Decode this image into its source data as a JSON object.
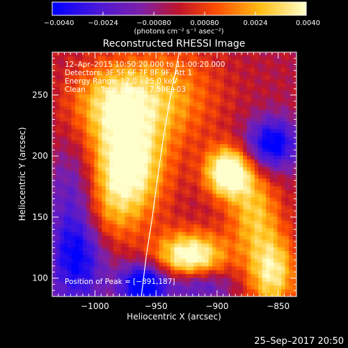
{
  "chart_data": {
    "type": "heatmap",
    "title": "Reconstructed RHESSI Image",
    "xlabel": "Heliocentric X (arcsec)",
    "ylabel": "Heliocentric Y (arcsec)",
    "xlim": [
      -1035,
      -835
    ],
    "ylim": [
      85,
      285
    ],
    "x_ticks": [
      -1000,
      -950,
      -900,
      -850
    ],
    "x_tick_labels": [
      "−1000",
      "−950",
      "−900",
      "−850"
    ],
    "y_ticks": [
      100,
      150,
      200,
      250
    ],
    "y_tick_labels": [
      "100",
      "150",
      "200",
      "250"
    ],
    "colorbar": {
      "min": -0.004,
      "max": 0.004,
      "ticks": [
        -0.004,
        -0.0024,
        -0.0008,
        0.0008,
        0.0024,
        0.004
      ],
      "tick_labels": [
        "−0.0040",
        "−0.0024",
        "−0.00080",
        "0.00080",
        "0.0024",
        "0.0040"
      ],
      "units_label": "(photons cm⁻² s⁻¹ asec⁻²)"
    },
    "annotations": {
      "time_range": "12–Apr–2015 10:50:20.000 to 11:00:20.000",
      "detectors": "Detectors: 3F 5F 6F 7F 8F 9F, Att 1",
      "energy": "Energy Range: 12.0 – 25.0 keV",
      "method": "Clean",
      "counts": "Total counts: 7.59E+03",
      "peak": "Position of Peak = [−891,187]"
    },
    "limb_curve": [
      [
        -931,
        285
      ],
      [
        -938,
        250
      ],
      [
        -944,
        215
      ],
      [
        -949,
        180
      ],
      [
        -953,
        150
      ],
      [
        -958,
        118
      ],
      [
        -962,
        85
      ]
    ],
    "sources": [
      {
        "x": -975,
        "y": 190,
        "amp": 0.0048,
        "sx": 22,
        "sy": 30
      },
      {
        "x": -985,
        "y": 245,
        "amp": 0.003,
        "sx": 25,
        "sy": 22
      },
      {
        "x": -891,
        "y": 187,
        "amp": 0.0054,
        "sx": 13,
        "sy": 14
      },
      {
        "x": -922,
        "y": 118,
        "amp": 0.0048,
        "sx": 20,
        "sy": 14
      },
      {
        "x": -855,
        "y": 105,
        "amp": 0.0038,
        "sx": 14,
        "sy": 22
      },
      {
        "x": -870,
        "y": 155,
        "amp": 0.0028,
        "sx": 15,
        "sy": 25
      },
      {
        "x": -940,
        "y": 250,
        "amp": 0.0022,
        "sx": 30,
        "sy": 30
      },
      {
        "x": -1005,
        "y": 150,
        "amp": 0.0022,
        "sx": 20,
        "sy": 20
      },
      {
        "x": -1015,
        "y": 135,
        "amp": -0.0048,
        "sx": 16,
        "sy": 40
      },
      {
        "x": -960,
        "y": 95,
        "amp": -0.005,
        "sx": 14,
        "sy": 12
      },
      {
        "x": -855,
        "y": 210,
        "amp": -0.0042,
        "sx": 15,
        "sy": 15
      },
      {
        "x": -915,
        "y": 95,
        "amp": -0.0025,
        "sx": 18,
        "sy": 10
      }
    ]
  },
  "footer": {
    "date_time": "25–Sep–2017 20:50"
  },
  "colors": {
    "background": "#000000",
    "text": "#ffffff",
    "limb": "#ffffff"
  }
}
